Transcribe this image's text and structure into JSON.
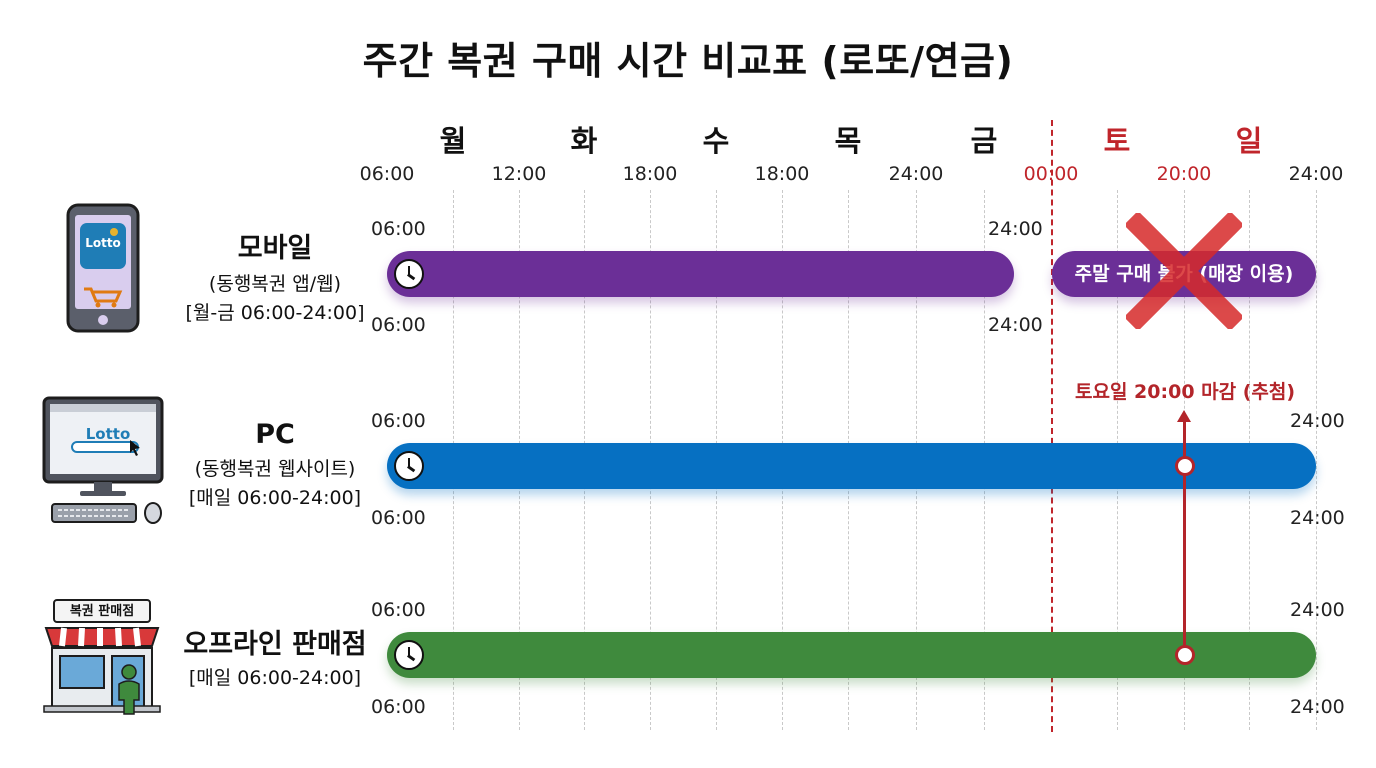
{
  "title": "주간 복권 구매 시간 비교표 (로또/연금)",
  "days": [
    {
      "label": "월",
      "weekend": false
    },
    {
      "label": "화",
      "weekend": false
    },
    {
      "label": "수",
      "weekend": false
    },
    {
      "label": "목",
      "weekend": false
    },
    {
      "label": "금",
      "weekend": false
    },
    {
      "label": "토",
      "weekend": true
    },
    {
      "label": "일",
      "weekend": true
    }
  ],
  "axis_ticks": [
    {
      "label": "06:00",
      "red": false
    },
    {
      "label": "12:00",
      "red": false
    },
    {
      "label": "18:00",
      "red": false
    },
    {
      "label": "18:00",
      "red": false
    },
    {
      "label": "24:00",
      "red": false
    },
    {
      "label": "00:00",
      "red": true
    },
    {
      "label": "20:00",
      "red": true
    },
    {
      "label": "24:00",
      "red": false
    }
  ],
  "rows": {
    "mobile": {
      "name": "모바일",
      "sub": "(동행복권 앱/웹)",
      "hours": "[월-금 06:00-24:00]",
      "start_top": "06:00",
      "start_bottom": "06:00",
      "end_top": "24:00",
      "end_bottom": "24:00",
      "weekend_label": "주말 구매 불가 (매장 이용)",
      "app_logo": "Lotto"
    },
    "pc": {
      "name": "PC",
      "sub": "(동행복권 웹사이트)",
      "hours": "[매일 06:00-24:00]",
      "start_top": "06:00",
      "start_bottom": "06:00",
      "end_top": "24:00",
      "end_bottom": "24:00",
      "app_logo": "Lotto"
    },
    "offline": {
      "name": "오프라인 판매점",
      "hours": "[매일 06:00-24:00]",
      "start_top": "06:00",
      "start_bottom": "06:00",
      "end_top": "24:00",
      "end_bottom": "24:00",
      "store_sign": "복권 판매점"
    }
  },
  "deadline_label": "토요일 20:00 마감 (추첨)",
  "colors": {
    "mobile": "#6b2f97",
    "pc": "#0670c2",
    "offline": "#3f8a3d",
    "weekend": "#c0252b"
  },
  "icons": [
    "smartphone-icon",
    "cart-icon",
    "desktop-computer-icon",
    "keyboard-icon",
    "mouse-icon",
    "store-icon",
    "person-icon",
    "clock-icon",
    "cross-icon"
  ]
}
